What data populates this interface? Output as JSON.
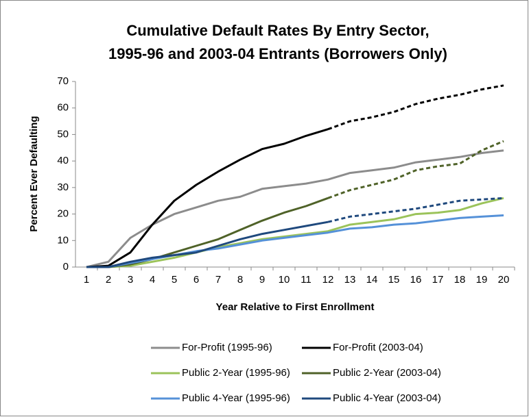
{
  "chart_data": {
    "type": "line",
    "title": [
      "Cumulative Default Rates By Entry Sector,",
      "1995-96 and 2003-04 Entrants (Borrowers Only)"
    ],
    "x_label": "Year Relative to First Enrollment",
    "y_label": "Percent Ever Defaulting",
    "categories": [
      "1",
      "2",
      "3",
      "4",
      "5",
      "6",
      "7",
      "8",
      "9",
      "10",
      "11",
      "12",
      "13",
      "14",
      "15",
      "16",
      "17",
      "18",
      "19",
      "20"
    ],
    "ylim": [
      0,
      70
    ],
    "yticks": [
      0,
      10,
      20,
      30,
      40,
      50,
      60,
      70
    ],
    "grid": false,
    "legend": "bottom",
    "series": [
      {
        "name": "For-Profit (1995-96)",
        "color": "#8c8c8c",
        "values": [
          0,
          2,
          11,
          16,
          20,
          22.5,
          25,
          26.5,
          29.5,
          30.5,
          31.5,
          33,
          35.5,
          36.5,
          37.5,
          39.5,
          40.5,
          41.5,
          43,
          44
        ]
      },
      {
        "name": "For-Profit (2003-04)",
        "color": "#000000",
        "dashed_from": "12",
        "values": [
          0,
          0.5,
          5.5,
          16,
          25,
          31,
          36,
          40.5,
          44.5,
          46.5,
          49.5,
          52,
          55,
          56.5,
          58.5,
          61.5,
          63.5,
          65,
          67,
          68.5
        ]
      },
      {
        "name": "Public 2-Year (1995-96)",
        "color": "#9bc35a",
        "values": [
          0,
          0,
          0.5,
          2,
          3.5,
          5.5,
          7.5,
          9,
          10.5,
          11.5,
          12.5,
          13.5,
          16,
          17,
          18,
          20,
          20.5,
          21.5,
          24,
          26
        ]
      },
      {
        "name": "Public 2-Year (2003-04)",
        "color": "#4f6228",
        "dashed_from": "12",
        "values": [
          0,
          0,
          1,
          3,
          5.5,
          8,
          10.5,
          14,
          17.5,
          20.5,
          23,
          26,
          29,
          31,
          33,
          36.5,
          38,
          39,
          44,
          47.5
        ]
      },
      {
        "name": "Public 4-Year (1995-96)",
        "color": "#5591d8",
        "values": [
          0,
          0,
          1.5,
          3,
          4.5,
          6,
          7,
          8.5,
          10,
          11,
          12,
          13,
          14.5,
          15,
          16,
          16.5,
          17.5,
          18.5,
          19,
          19.5
        ]
      },
      {
        "name": "Public 4-Year (2003-04)",
        "color": "#1f497d",
        "dashed_from": "12",
        "values": [
          0,
          0,
          2,
          3.5,
          4.5,
          5.5,
          8,
          10.5,
          12.5,
          14,
          15.5,
          17,
          19,
          20,
          21,
          22,
          23.5,
          25,
          25.5,
          26
        ]
      }
    ]
  }
}
